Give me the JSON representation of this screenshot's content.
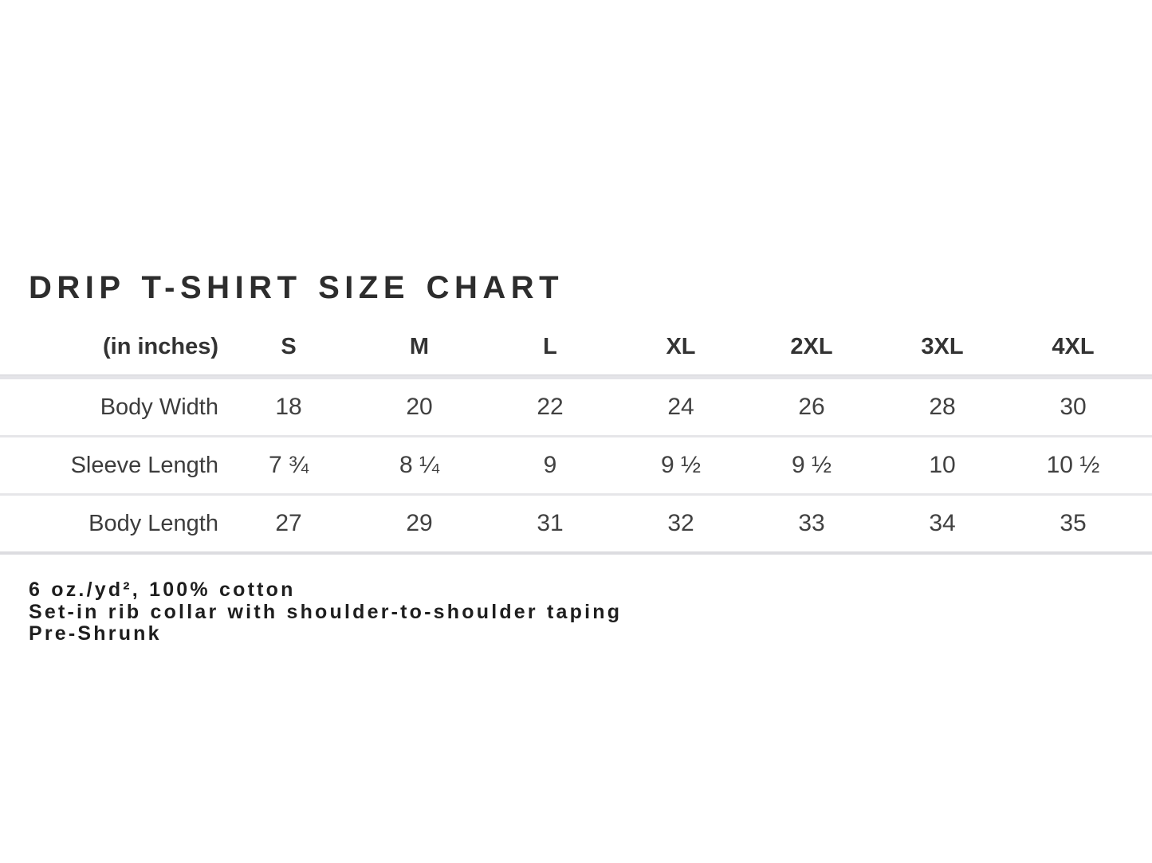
{
  "title": "DRIP T-SHIRT SIZE CHART",
  "size_chart": {
    "unit_label": "(in inches)",
    "columns": [
      "S",
      "M",
      "L",
      "XL",
      "2XL",
      "3XL",
      "4XL"
    ],
    "rows": [
      {
        "label": "Body Width",
        "values": [
          "18",
          "20",
          "22",
          "24",
          "26",
          "28",
          "30"
        ]
      },
      {
        "label": "Sleeve Length",
        "values": [
          "7 ¾",
          "8 ¼",
          "9",
          "9 ½",
          "9 ½",
          "10",
          "10 ½"
        ]
      },
      {
        "label": "Body Length",
        "values": [
          "27",
          "29",
          "31",
          "32",
          "33",
          "34",
          "35"
        ]
      }
    ]
  },
  "details": {
    "lines": [
      "6 oz./yd², 100% cotton",
      "Set-in rib collar with shoulder-to-shoulder taping",
      "Pre-Shrunk"
    ]
  },
  "colors": {
    "title_text": "#2d2d2d",
    "table_text": "#414141",
    "divider": "#e4e4e8",
    "background": "#ffffff"
  },
  "chart_data": {
    "type": "table",
    "title": "DRIP T-SHIRT SIZE CHART",
    "unit": "inches",
    "columns": [
      "(in inches)",
      "S",
      "M",
      "L",
      "XL",
      "2XL",
      "3XL",
      "4XL"
    ],
    "rows": [
      [
        "Body Width",
        "18",
        "20",
        "22",
        "24",
        "26",
        "28",
        "30"
      ],
      [
        "Sleeve Length",
        "7 ¾",
        "8 ¼",
        "9",
        "9 ½",
        "9 ½",
        "10",
        "10 ½"
      ],
      [
        "Body Length",
        "27",
        "29",
        "31",
        "32",
        "33",
        "34",
        "35"
      ]
    ],
    "notes": [
      "6 oz./yd², 100% cotton",
      "Set-in rib collar with shoulder-to-shoulder taping",
      "Pre-Shrunk"
    ]
  }
}
